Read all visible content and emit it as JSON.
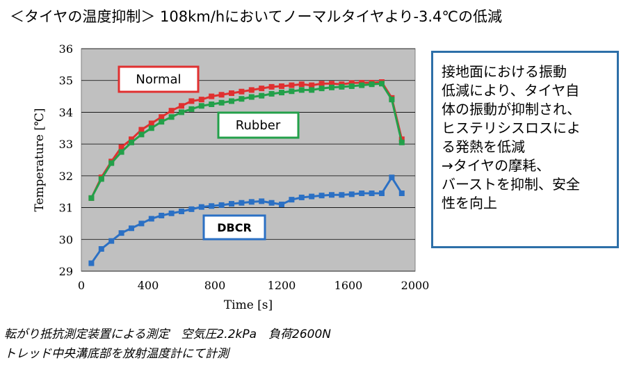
{
  "title": "＜タイヤの温度抑制＞ 108km/hにおいてノーマルタイヤより-3.4℃の低減",
  "note_lines": [
    "接地面における振動",
    "低減により、タイヤ自",
    "体の振動が抑制され、",
    "ヒステリシスロスによ",
    "る発熱を低減",
    "→タイヤの摩耗、",
    "バーストを抑制、安全",
    "性を向上"
  ],
  "footnotes": [
    "転がり抵抗測定装置による測定　空気圧2.2kPa　負荷2600N",
    "トレッド中央溝底部を放射温度計にて計測"
  ],
  "colors": {
    "plot_background": "#c0c0c0",
    "normal": "#e03030",
    "rubber": "#23a04a",
    "dbcr": "#2b70c4",
    "note_border": "#2d6fa8"
  },
  "chart_data": {
    "type": "line",
    "xlabel": "Time [s]",
    "ylabel": "Temperature [℃]",
    "xlim": [
      0,
      2000
    ],
    "ylim": [
      29,
      36
    ],
    "xticks": [
      "0",
      "400",
      "800",
      "1200",
      "1600",
      "2000"
    ],
    "yticks": [
      "29",
      "30",
      "31",
      "32",
      "33",
      "34",
      "35",
      "36"
    ],
    "grid": "horizontal",
    "x": [
      60,
      120,
      180,
      240,
      300,
      360,
      420,
      480,
      540,
      600,
      660,
      720,
      780,
      840,
      900,
      960,
      1020,
      1080,
      1140,
      1200,
      1260,
      1320,
      1380,
      1440,
      1500,
      1560,
      1620,
      1680,
      1740,
      1800,
      1860,
      1920
    ],
    "series": [
      {
        "name": "Normal",
        "values": [
          31.3,
          31.95,
          32.45,
          32.9,
          33.15,
          33.45,
          33.65,
          33.85,
          34.05,
          34.2,
          34.35,
          34.4,
          34.5,
          34.55,
          34.6,
          34.65,
          34.7,
          34.75,
          34.8,
          34.82,
          34.85,
          34.88,
          34.85,
          34.9,
          34.9,
          34.88,
          34.92,
          34.93,
          34.93,
          34.95,
          34.45,
          33.15
        ]
      },
      {
        "name": "Rubber",
        "values": [
          31.3,
          31.9,
          32.4,
          32.75,
          33.05,
          33.3,
          33.5,
          33.7,
          33.85,
          34.0,
          34.1,
          34.2,
          34.25,
          34.3,
          34.35,
          34.42,
          34.48,
          34.52,
          34.58,
          34.62,
          34.66,
          34.7,
          34.7,
          34.75,
          34.78,
          34.8,
          34.82,
          34.85,
          34.88,
          34.9,
          34.4,
          33.05
        ]
      },
      {
        "name": "DBCR",
        "values": [
          29.25,
          29.7,
          29.95,
          30.2,
          30.35,
          30.5,
          30.65,
          30.75,
          30.82,
          30.88,
          30.95,
          31.02,
          31.05,
          31.08,
          31.12,
          31.15,
          31.18,
          31.2,
          31.15,
          31.1,
          31.25,
          31.32,
          31.35,
          31.38,
          31.4,
          31.4,
          31.42,
          31.45,
          31.45,
          31.45,
          31.95,
          31.45
        ]
      }
    ],
    "legend": "inline callout boxes"
  }
}
